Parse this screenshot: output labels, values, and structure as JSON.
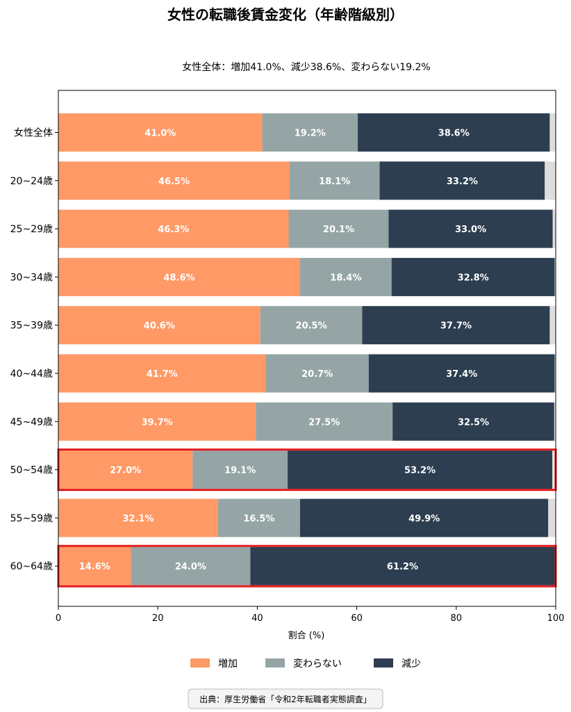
{
  "chart_data": {
    "type": "bar",
    "orientation": "horizontal",
    "stacked": true,
    "title": "女性の転職後賃金変化（年齢階級別）",
    "subtitle": "女性全体：増加41.0%、減少38.6%、変わらない19.2%",
    "xlabel": "割合 (%)",
    "ylabel": "",
    "xlim": [
      0,
      100
    ],
    "xticks": [
      0,
      20,
      40,
      60,
      80,
      100
    ],
    "categories": [
      "女性全体",
      "20~24歳",
      "25~29歳",
      "30~34歳",
      "35~39歳",
      "40~44歳",
      "45~49歳",
      "50~54歳",
      "55~59歳",
      "60~64歳"
    ],
    "series": [
      {
        "name": "増加",
        "color": "#FF9966",
        "values": [
          41.0,
          46.5,
          46.3,
          48.6,
          40.6,
          41.7,
          39.7,
          27.0,
          32.1,
          14.6
        ]
      },
      {
        "name": "変わらない",
        "color": "#95A5A6",
        "values": [
          19.2,
          18.1,
          20.1,
          18.4,
          20.5,
          20.7,
          27.5,
          19.1,
          16.5,
          24.0
        ]
      },
      {
        "name": "減少",
        "color": "#2C3E50",
        "values": [
          38.6,
          33.2,
          33.0,
          32.8,
          37.7,
          37.4,
          32.5,
          53.2,
          49.9,
          61.2
        ]
      }
    ],
    "remainder_color": "#DDDDDD",
    "highlighted_categories": [
      "50~54歳",
      "60~64歳"
    ],
    "highlight_color": "#E31A1C",
    "legend_placement": "bottom-center",
    "source": "出典：厚生労働省「令和2年転職者実態調査」"
  }
}
